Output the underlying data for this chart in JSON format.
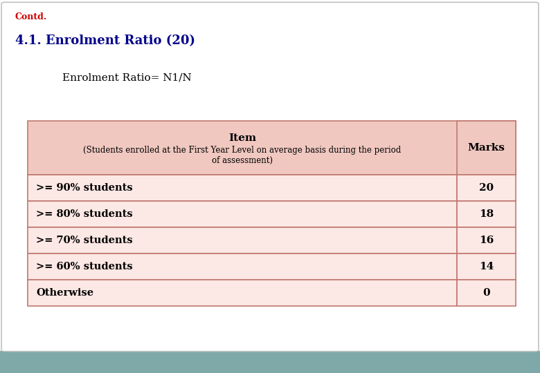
{
  "contd_text": "Contd.",
  "contd_color": "#cc0000",
  "heading_text": "4.1. Enrolment Ratio (20)",
  "heading_color": "#00008B",
  "formula_text": "Enrolment Ratio= N1/N",
  "formula_color": "#000000",
  "table_header_item": "Item",
  "table_header_sub": "(Students enrolled at the First Year Level on average basis during the period\nof assessment)",
  "table_header_marks": "Marks",
  "table_rows": [
    [
      ">= 90% students",
      "20"
    ],
    [
      ">= 80% students",
      "18"
    ],
    [
      ">= 70% students",
      "16"
    ],
    [
      ">= 60% students",
      "14"
    ],
    [
      "Otherwise",
      "0"
    ]
  ],
  "table_border_color": "#c07870",
  "table_header_bg": "#f0c8c0",
  "table_row_bg_odd": "#fce8e4",
  "table_row_bg_even": "#fce8e4",
  "background_color": "#ffffff",
  "footer_color": "#7fa8a8",
  "slide_border_color": "#c0c0c0",
  "text_color": "#000000"
}
